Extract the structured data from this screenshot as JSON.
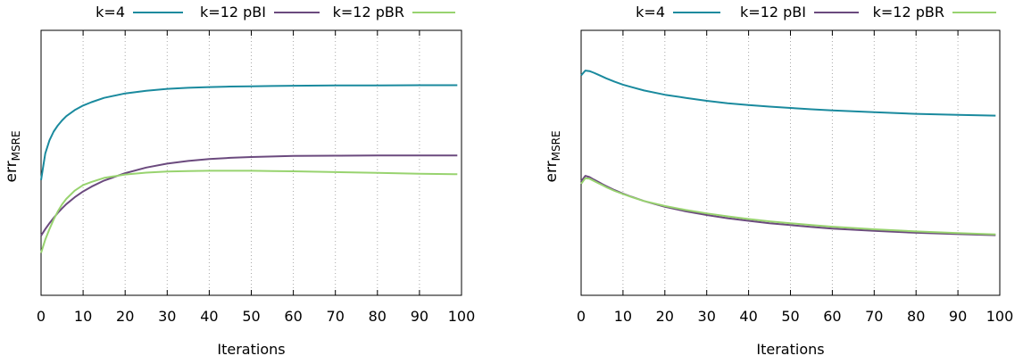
{
  "colors": {
    "k4": "#1a8a9e",
    "k12pBI": "#6b4a7e",
    "k12pBR": "#98d36f",
    "grid": "#a8a8a8",
    "axis": "#000000"
  },
  "chart_data": [
    {
      "type": "line",
      "xlabel": "Iterations",
      "ylabel": "err",
      "ylabel_sub": "MSRE",
      "xlim": [
        0,
        100
      ],
      "ylim": [
        0,
        1
      ],
      "x_ticks": [
        "0",
        "10",
        "20",
        "30",
        "40",
        "50",
        "60",
        "70",
        "80",
        "90",
        "100"
      ],
      "grid": "vertical dotted",
      "legend": "top",
      "x": [
        0,
        1,
        2,
        3,
        4,
        5,
        6,
        8,
        10,
        12,
        15,
        20,
        25,
        30,
        35,
        40,
        45,
        50,
        55,
        60,
        70,
        80,
        90,
        99
      ],
      "series": [
        {
          "name": "k=4",
          "color_key": "k4",
          "values": [
            0.435,
            0.535,
            0.585,
            0.618,
            0.641,
            0.66,
            0.676,
            0.699,
            0.716,
            0.729,
            0.745,
            0.762,
            0.772,
            0.779,
            0.783,
            0.786,
            0.788,
            0.789,
            0.79,
            0.791,
            0.792,
            0.792,
            0.793,
            0.793
          ]
        },
        {
          "name": "k=12 pBI",
          "color_key": "k12pBI",
          "values": [
            0.225,
            0.25,
            0.272,
            0.292,
            0.311,
            0.328,
            0.344,
            0.37,
            0.392,
            0.41,
            0.433,
            0.461,
            0.482,
            0.497,
            0.507,
            0.514,
            0.519,
            0.522,
            0.524,
            0.526,
            0.527,
            0.528,
            0.528,
            0.528
          ]
        },
        {
          "name": "k=12 pBR",
          "color_key": "k12pBR",
          "values": [
            0.16,
            0.21,
            0.25,
            0.286,
            0.317,
            0.343,
            0.364,
            0.395,
            0.416,
            0.428,
            0.443,
            0.456,
            0.463,
            0.467,
            0.469,
            0.47,
            0.47,
            0.47,
            0.469,
            0.468,
            0.465,
            0.462,
            0.459,
            0.457
          ]
        }
      ]
    },
    {
      "type": "line",
      "xlabel": "Iterations",
      "ylabel": "err",
      "ylabel_sub": "MSRE",
      "xlim": [
        0,
        100
      ],
      "ylim": [
        0,
        1
      ],
      "x_ticks": [
        "0",
        "10",
        "20",
        "30",
        "40",
        "50",
        "60",
        "70",
        "80",
        "90",
        "100"
      ],
      "grid": "vertical dotted",
      "legend": "top",
      "x": [
        0,
        1,
        2,
        3,
        4,
        5,
        6,
        8,
        10,
        12,
        15,
        20,
        25,
        30,
        35,
        40,
        45,
        50,
        55,
        60,
        70,
        80,
        90,
        99
      ],
      "series": [
        {
          "name": "k=4",
          "color_key": "k4",
          "values": [
            0.83,
            0.848,
            0.846,
            0.84,
            0.833,
            0.826,
            0.819,
            0.806,
            0.795,
            0.786,
            0.773,
            0.757,
            0.745,
            0.734,
            0.725,
            0.718,
            0.712,
            0.707,
            0.702,
            0.698,
            0.691,
            0.685,
            0.681,
            0.678
          ]
        },
        {
          "name": "k=12 pBI",
          "color_key": "k12pBI",
          "values": [
            0.43,
            0.451,
            0.446,
            0.437,
            0.429,
            0.42,
            0.412,
            0.397,
            0.384,
            0.372,
            0.356,
            0.334,
            0.317,
            0.303,
            0.291,
            0.281,
            0.272,
            0.265,
            0.258,
            0.252,
            0.243,
            0.236,
            0.231,
            0.227
          ]
        },
        {
          "name": "k=12 pBR",
          "color_key": "k12pBR",
          "values": [
            0.421,
            0.442,
            0.44,
            0.432,
            0.424,
            0.416,
            0.408,
            0.394,
            0.382,
            0.371,
            0.356,
            0.337,
            0.322,
            0.309,
            0.298,
            0.288,
            0.279,
            0.272,
            0.265,
            0.259,
            0.249,
            0.241,
            0.235,
            0.23
          ]
        }
      ]
    }
  ]
}
